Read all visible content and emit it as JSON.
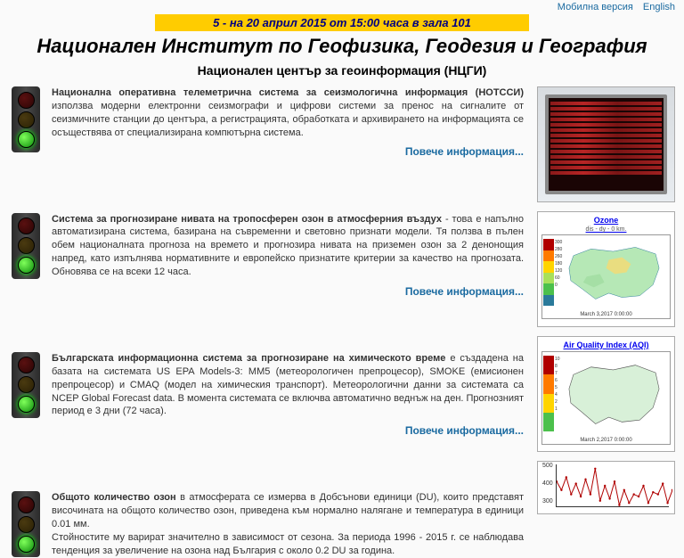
{
  "top_links": {
    "mobile": "Мобилна версия",
    "english": "English"
  },
  "banner": "5 - на 20 април 2015 от 15:00 часа в зала 101",
  "main_title": "Национален Институт по Геофизика, Геодезия и География",
  "sub_title": "Национален център за геоинформация (НЦГИ)",
  "more_info_label": "Повече информация...",
  "sections": [
    {
      "bold": "Национална оперативна телеметрична система за сеизмологична информация (НОТССИ)",
      "rest": " използва модерни електронни сеизмографи и цифрови системи за пренос на сигналите от сеизмичните станции до центъра, а регистрацията, обработката и архивирането на информацията се осъществява от специализирана компютърна система."
    },
    {
      "bold": "Система за прогнозиране нивата на тропосферен озон в атмосферния въздух",
      "rest": " - това е напълно автоматизирана система, базирана на съвременни и световно признати модели. Тя ползва в пълен обем националната прогноза на времето и прогнозира нивата на приземен озон за 2 денонощия напред, като изпълнява нормативните и европейско признатите критерии за качество на прогнозата. Обновява се на всеки 12 часа."
    },
    {
      "bold": "Българската информационна система за прогнозиране на химическото време",
      "rest": " е създадена на базата на системата US EPA Models-3: MM5 (метеорологичен препроцесор), SMOKE (емисионен препроцесор) и CMAQ (модел на химическия транспорт). Метеорологични данни за системата са NCEP Global Forecast data. В момента системата се включва автоматично веднъж на ден. Прогнозният период е 3 дни (72 часа)."
    },
    {
      "bold": "Общото количество озон",
      "rest": " в атмосферата се измерва в Добсънови единици (DU), които представят височината на общото количество озон, приведена към нормално налягане и температура в единици 0.01 мм.",
      "extra": "Стойностите му варират значително в зависимост от сезона. За периода 1996 - 2015 г. се наблюдава тенденция за увеличение на озона над България с около 0.2 DU за година."
    }
  ],
  "thumbs": {
    "ozone": {
      "title": "Ozone",
      "subtitle": "dis - dy - 0 km.",
      "footer": "March 3,2017 0:00:00",
      "legend_colors": [
        "#b00000",
        "#ff7a00",
        "#ffd400",
        "#a8e05a",
        "#4cc04c",
        "#2a7a9a"
      ],
      "legend_vals": [
        "300",
        "280",
        "260",
        "180",
        "120",
        "60",
        "0"
      ],
      "map_fill": "#b6e8b6"
    },
    "aqi": {
      "title": "Air Quality Index (AQI)",
      "footer": "March 2,2017 0:00:00",
      "legend_colors": [
        "#b00000",
        "#ff7a00",
        "#ffd400",
        "#4cc04c"
      ],
      "legend_vals": [
        "10",
        "8",
        "7",
        "6",
        "5",
        "4",
        "2",
        "1"
      ],
      "map_fill": "#d8f0d8"
    },
    "line_chart": {
      "yticks": [
        "500",
        "400",
        "300"
      ],
      "color": "#b00000",
      "points": [
        420,
        380,
        440,
        360,
        410,
        350,
        430,
        360,
        480,
        330,
        400,
        340,
        420,
        310,
        380,
        320,
        360,
        350,
        400,
        320,
        370,
        360,
        410,
        320,
        380
      ]
    }
  }
}
